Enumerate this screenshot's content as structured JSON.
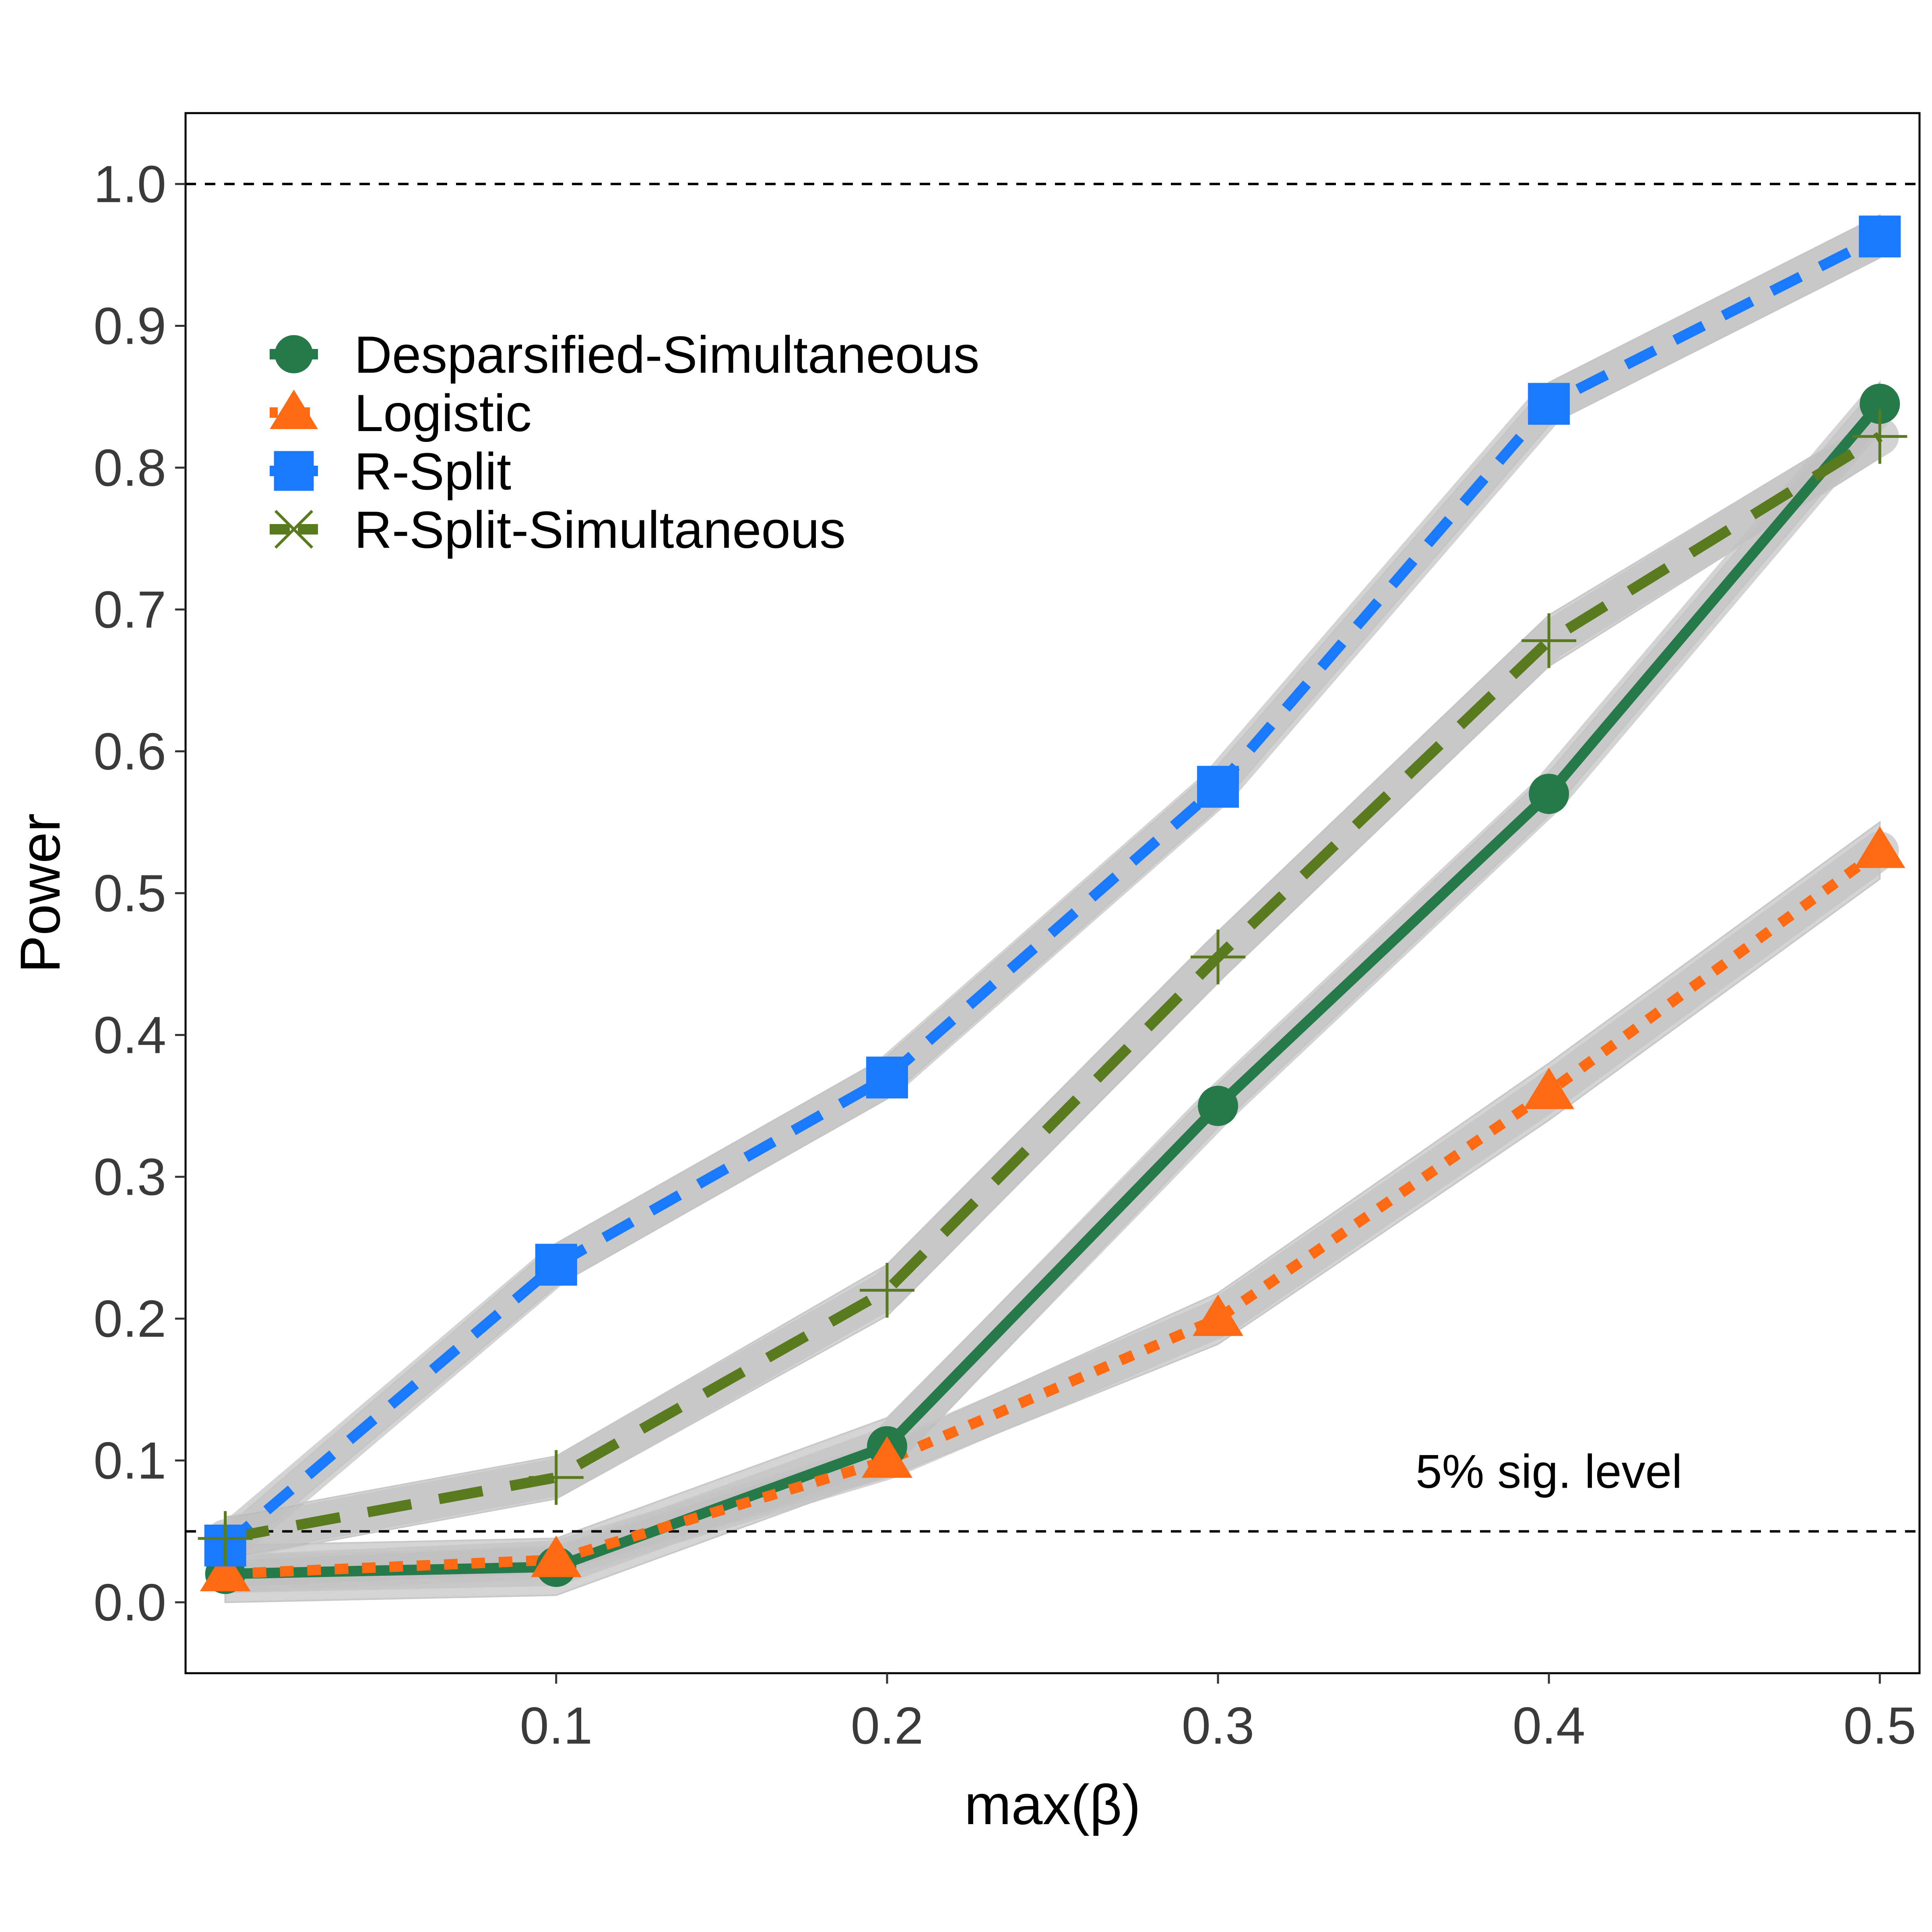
{
  "chart_data": {
    "type": "line",
    "title": "",
    "xlabel": "max(β)",
    "ylabel": "Power",
    "xlim": [
      -0.012,
      0.512
    ],
    "ylim": [
      -0.05,
      1.05
    ],
    "x": [
      0.0,
      0.1,
      0.2,
      0.3,
      0.4,
      0.5
    ],
    "x_tick_labels": [
      "0.1",
      "0.2",
      "0.3",
      "0.4",
      "0.5"
    ],
    "x_tick_values": [
      0.1,
      0.2,
      0.3,
      0.4,
      0.5
    ],
    "y_tick_labels": [
      "0.0",
      "0.1",
      "0.2",
      "0.3",
      "0.4",
      "0.5",
      "0.6",
      "0.7",
      "0.8",
      "0.9",
      "1.0"
    ],
    "y_tick_values": [
      0.0,
      0.1,
      0.2,
      0.3,
      0.4,
      0.5,
      0.6,
      0.7,
      0.8,
      0.9,
      1.0
    ],
    "reference_lines": [
      {
        "y": 1.0,
        "style": "dashed"
      },
      {
        "y": 0.05,
        "style": "dashed"
      }
    ],
    "annotation": {
      "text": "5% sig. level",
      "x": 0.4,
      "y": 0.092
    },
    "series": [
      {
        "name": "Desparsified-Simultaneous",
        "color": "#267a49",
        "marker": "circle",
        "linestyle": "solid",
        "values": [
          0.02,
          0.025,
          0.11,
          0.35,
          0.57,
          0.845
        ],
        "band_half_width": [
          0.02,
          0.02,
          0.02,
          0.015,
          0.015,
          0.015
        ]
      },
      {
        "name": "Logistic",
        "color": "#ff6a13",
        "marker": "triangle",
        "linestyle": "dotted",
        "values": [
          0.02,
          0.03,
          0.1,
          0.2,
          0.36,
          0.53
        ],
        "band_half_width": [
          0.01,
          0.01,
          0.012,
          0.018,
          0.02,
          0.02
        ]
      },
      {
        "name": "R-Split",
        "color": "#1a7aff",
        "marker": "square",
        "linestyle": "dashed",
        "values": [
          0.04,
          0.238,
          0.37,
          0.575,
          0.845,
          0.963
        ],
        "band_half_width": [
          0.012,
          0.015,
          0.015,
          0.015,
          0.015,
          0.015
        ]
      },
      {
        "name": "R-Split-Simultaneous",
        "color": "#5a7a1e",
        "marker": "cross",
        "linestyle": "longdash",
        "values": [
          0.045,
          0.088,
          0.22,
          0.455,
          0.678,
          0.822
        ],
        "band_half_width": [
          0.015,
          0.015,
          0.018,
          0.018,
          0.018,
          0.015
        ]
      }
    ],
    "legend_position": "top-left"
  }
}
